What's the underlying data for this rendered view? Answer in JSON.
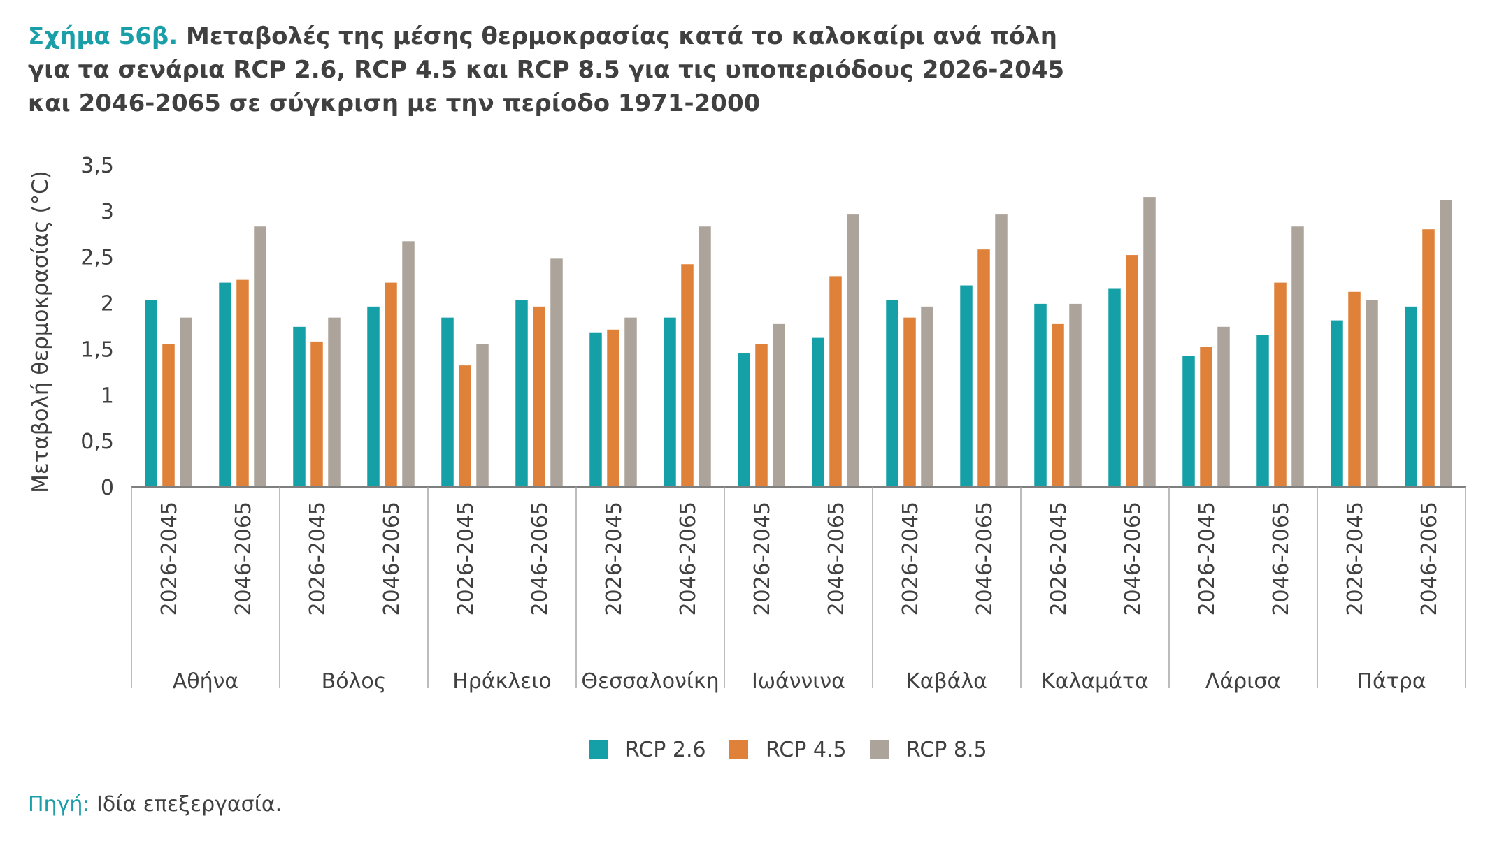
{
  "title": {
    "figure_label": "Σχήμα 56β.",
    "text": "Μεταβολές της μέσης θερμοκρασίας κατά το καλοκαίρι ανά πόλη για τα σενάρια RCP 2.6, RCP 4.5 και RCP 8.5 για τις υποπεριόδους 2026-2045 και 2046-2065 σε σύγκριση με την περίοδο 1971-2000"
  },
  "source": {
    "label": "Πηγή:",
    "text": "Ιδία επεξεργασία."
  },
  "chart_data": {
    "type": "bar",
    "ylabel": "Μεταβολή θερμοκρασίας (°C)",
    "ylim": [
      0,
      3.5
    ],
    "yticks": [
      "0",
      "0,5",
      "1",
      "1,5",
      "2",
      "2,5",
      "3",
      "3,5"
    ],
    "ytick_values": [
      0,
      0.5,
      1,
      1.5,
      2,
      2.5,
      3,
      3.5
    ],
    "grid": false,
    "legend_position": "bottom",
    "groups": [
      "Αθήνα",
      "Βόλος",
      "Ηράκλειο",
      "Θεσσαλονίκη",
      "Ιωάννινα",
      "Καβάλα",
      "Καλαμάτα",
      "Λάρισα",
      "Πάτρα"
    ],
    "periods": [
      "2026-2045",
      "2046-2065"
    ],
    "series": [
      {
        "name": "RCP 2.6",
        "color": "#14a0a6",
        "values": [
          2.03,
          2.22,
          1.74,
          1.96,
          1.84,
          2.03,
          1.68,
          1.84,
          1.45,
          1.62,
          2.03,
          2.19,
          1.99,
          2.16,
          1.42,
          1.65,
          1.81,
          1.96
        ]
      },
      {
        "name": "RCP 4.5",
        "color": "#e0813a",
        "values": [
          1.55,
          2.25,
          1.58,
          2.22,
          1.32,
          1.96,
          1.71,
          2.42,
          1.55,
          2.29,
          1.84,
          2.58,
          1.77,
          2.52,
          1.52,
          2.22,
          2.12,
          2.8
        ]
      },
      {
        "name": "RCP 8.5",
        "color": "#aca39a",
        "values": [
          1.84,
          2.83,
          1.84,
          2.67,
          1.55,
          2.48,
          1.84,
          2.83,
          1.77,
          2.96,
          1.96,
          2.96,
          1.99,
          3.15,
          1.74,
          2.83,
          2.03,
          3.12
        ]
      }
    ]
  }
}
